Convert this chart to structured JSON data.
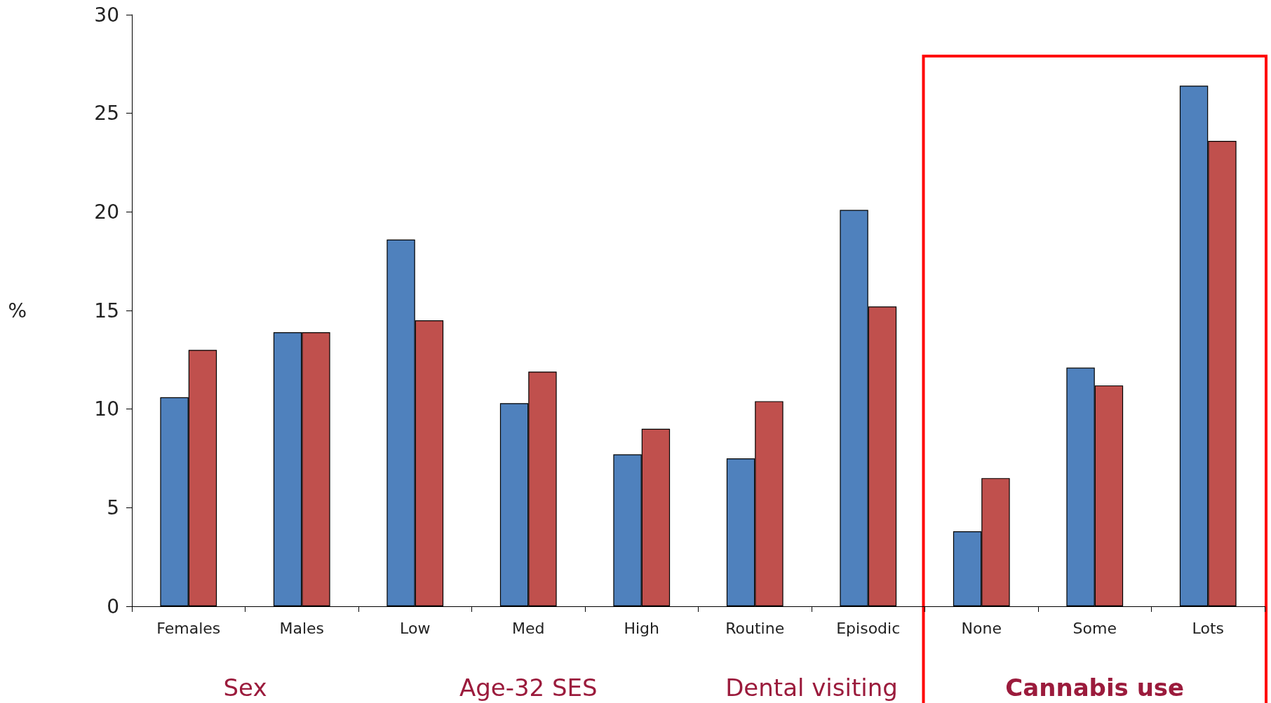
{
  "chart_data": {
    "type": "bar",
    "ylabel": "%",
    "categories": [
      "Females",
      "Males",
      "Low",
      "Med",
      "High",
      "Routine",
      "Episodic",
      "None",
      "Some",
      "Lots"
    ],
    "series": [
      {
        "color": "#4f81bd",
        "values": [
          10.6,
          13.9,
          18.6,
          10.3,
          7.7,
          7.5,
          20.1,
          3.8,
          12.1,
          26.4
        ]
      },
      {
        "color": "#c0504d",
        "values": [
          13.0,
          13.9,
          14.5,
          11.9,
          9.0,
          10.4,
          15.2,
          6.5,
          11.2,
          23.6
        ]
      }
    ],
    "ylim": [
      0,
      30
    ],
    "yticks": [
      0,
      5,
      10,
      15,
      20,
      25,
      30
    ],
    "annotations": [
      "Sex",
      "Age-32 SES",
      "Dental visiting",
      "Cannabis use"
    ]
  }
}
